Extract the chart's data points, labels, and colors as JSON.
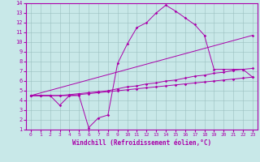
{
  "xlabel": "Windchill (Refroidissement éolien,°C)",
  "background_color": "#c8e8e8",
  "line_color": "#aa00aa",
  "xlim": [
    -0.5,
    23.5
  ],
  "ylim": [
    1,
    14
  ],
  "xticks": [
    0,
    1,
    2,
    3,
    4,
    5,
    6,
    7,
    8,
    9,
    10,
    11,
    12,
    13,
    14,
    15,
    16,
    17,
    18,
    19,
    20,
    21,
    22,
    23
  ],
  "yticks": [
    1,
    2,
    3,
    4,
    5,
    6,
    7,
    8,
    9,
    10,
    11,
    12,
    13,
    14
  ],
  "series": [
    {
      "x": [
        0,
        1,
        2,
        3,
        4,
        5,
        6,
        7,
        8,
        9,
        10,
        11,
        12,
        13,
        14,
        15,
        16,
        17,
        18,
        19,
        20,
        21,
        22,
        23
      ],
      "y": [
        4.5,
        4.5,
        4.5,
        3.5,
        4.5,
        4.5,
        1.2,
        2.2,
        2.5,
        7.8,
        9.8,
        11.5,
        12.0,
        13.0,
        13.8,
        13.2,
        12.5,
        11.8,
        10.7,
        7.2,
        7.2,
        7.2,
        7.2,
        6.4
      ]
    },
    {
      "x": [
        0,
        23
      ],
      "y": [
        4.5,
        10.7
      ]
    },
    {
      "x": [
        0,
        1,
        2,
        3,
        4,
        5,
        6,
        7,
        8,
        9,
        10,
        11,
        12,
        13,
        14,
        15,
        16,
        17,
        18,
        19,
        20,
        21,
        22,
        23
      ],
      "y": [
        4.5,
        4.5,
        4.5,
        4.5,
        4.6,
        4.7,
        4.8,
        4.9,
        5.0,
        5.2,
        5.4,
        5.5,
        5.7,
        5.8,
        6.0,
        6.1,
        6.3,
        6.5,
        6.6,
        6.8,
        6.9,
        7.1,
        7.2,
        7.3
      ]
    },
    {
      "x": [
        0,
        1,
        2,
        3,
        4,
        5,
        6,
        7,
        8,
        9,
        10,
        11,
        12,
        13,
        14,
        15,
        16,
        17,
        18,
        19,
        20,
        21,
        22,
        23
      ],
      "y": [
        4.5,
        4.5,
        4.5,
        4.5,
        4.5,
        4.6,
        4.7,
        4.8,
        4.9,
        5.0,
        5.1,
        5.2,
        5.3,
        5.4,
        5.5,
        5.6,
        5.7,
        5.8,
        5.9,
        6.0,
        6.1,
        6.2,
        6.3,
        6.4
      ]
    }
  ]
}
